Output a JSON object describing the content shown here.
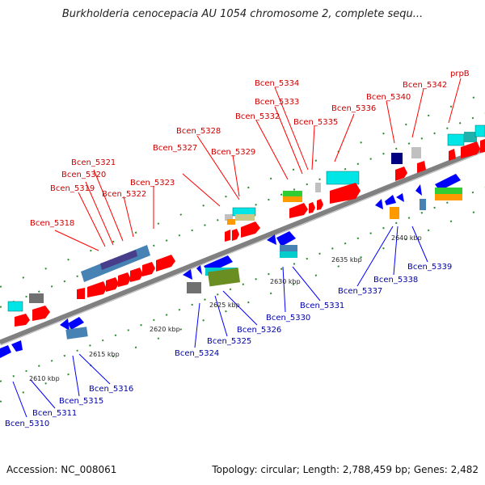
{
  "title": "Burkholderia cenocepacia AU 1054 chromosome 2, complete sequ...",
  "footer": {
    "accession": "Accession: NC_008061",
    "stats": "Topology: circular; Length: 2,788,459 bp; Genes: 2,482"
  },
  "colors": {
    "top_strand_label": "#cc0000",
    "bottom_strand_label": "#0000aa",
    "backbone": "#808080",
    "tick": "#2e8b2e"
  },
  "kbp_ticks": [
    "2610 kbp",
    "2615 kbp",
    "2620 kbp",
    "2625 kbp",
    "2630 kbp",
    "2635 kbp",
    "2640 kbp"
  ],
  "top_labels": [
    "Bcen_5318",
    "Bcen_5319",
    "Bcen_5320",
    "Bcen_5321",
    "Bcen_5322",
    "Bcen_5323",
    "Bcen_5327",
    "Bcen_5328",
    "Bcen_5329",
    "Bcen_5332",
    "Bcen_5333",
    "Bcen_5334",
    "Bcen_5335",
    "Bcen_5336",
    "Bcen_5340",
    "Bcen_5342",
    "prpB"
  ],
  "bottom_labels": [
    "Bcen_5310",
    "Bcen_5311",
    "Bcen_5315",
    "Bcen_5316",
    "Bcen_5324",
    "Bcen_5325",
    "Bcen_5326",
    "Bcen_5330",
    "Bcen_5331",
    "Bcen_5337",
    "Bcen_5338",
    "Bcen_5339"
  ]
}
